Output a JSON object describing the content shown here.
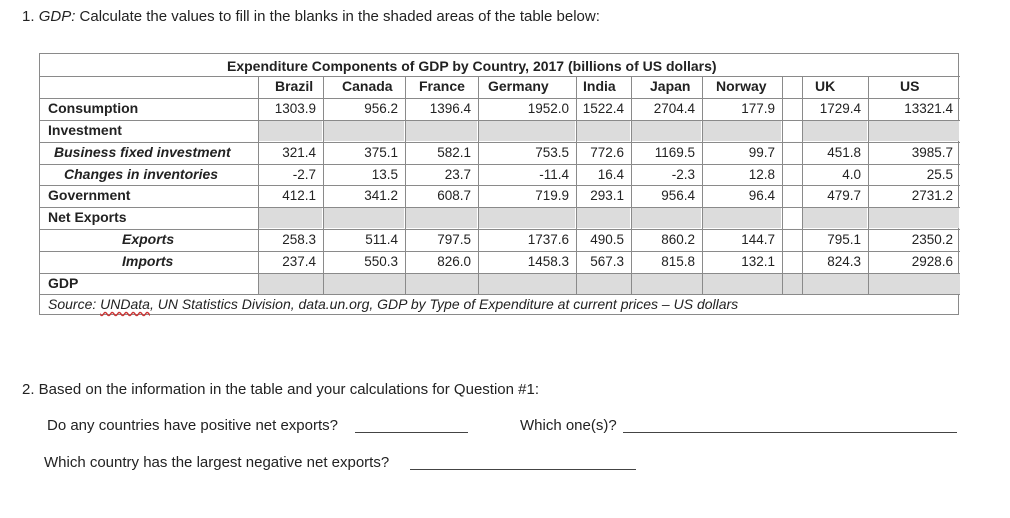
{
  "q1": {
    "number": "1.",
    "topic": "GDP:",
    "text": "Calculate the values to fill in the blanks in the shaded areas of the table below:"
  },
  "table": {
    "title": "Expenditure Components of GDP by Country, 2017 (billions of US dollars)",
    "countries": [
      "Brazil",
      "Canada",
      "France",
      "Germany",
      "India",
      "Japan",
      "Norway",
      "UK",
      "US"
    ],
    "rows": [
      {
        "label": "Consumption",
        "style": "b",
        "values": [
          "1303.9",
          "956.2",
          "1396.4",
          "1952.0",
          "1522.4",
          "2704.4",
          "177.9",
          "1729.4",
          "13321.4"
        ]
      },
      {
        "label": "Investment",
        "style": "b",
        "values": null
      },
      {
        "label": "Business fixed investment",
        "style": "bi",
        "values": [
          "321.4",
          "375.1",
          "582.1",
          "753.5",
          "772.6",
          "1169.5",
          "99.7",
          "451.8",
          "3985.7"
        ]
      },
      {
        "label": "Changes in inventories",
        "style": "bi",
        "values": [
          "-2.7",
          "13.5",
          "23.7",
          "-11.4",
          "16.4",
          "-2.3",
          "12.8",
          "4.0",
          "25.5"
        ]
      },
      {
        "label": "Government",
        "style": "b",
        "values": [
          "412.1",
          "341.2",
          "608.7",
          "719.9",
          "293.1",
          "956.4",
          "96.4",
          "479.7",
          "2731.2"
        ]
      },
      {
        "label": "Net Exports",
        "style": "b",
        "values": null
      },
      {
        "label": "Exports",
        "style": "bi",
        "values": [
          "258.3",
          "511.4",
          "797.5",
          "1737.6",
          "490.5",
          "860.2",
          "144.7",
          "795.1",
          "2350.2"
        ]
      },
      {
        "label": "Imports",
        "style": "bi",
        "values": [
          "237.4",
          "550.3",
          "826.0",
          "1458.3",
          "567.3",
          "815.8",
          "132.1",
          "824.3",
          "2928.6"
        ]
      },
      {
        "label": "GDP",
        "style": "b",
        "values": null
      }
    ],
    "source_prefix": "Source: ",
    "source_link": "UNData",
    "source_rest": ", UN Statistics Division, data.un.org, GDP by Type of Expenditure at current prices – US dollars"
  },
  "q2": {
    "intro": "2. Based on the information in the table and your calculations for Question #1:",
    "positive": "Do any countries have positive net exports?",
    "which": "Which one(s)?",
    "largest": "Which country has the largest negative net exports?"
  }
}
